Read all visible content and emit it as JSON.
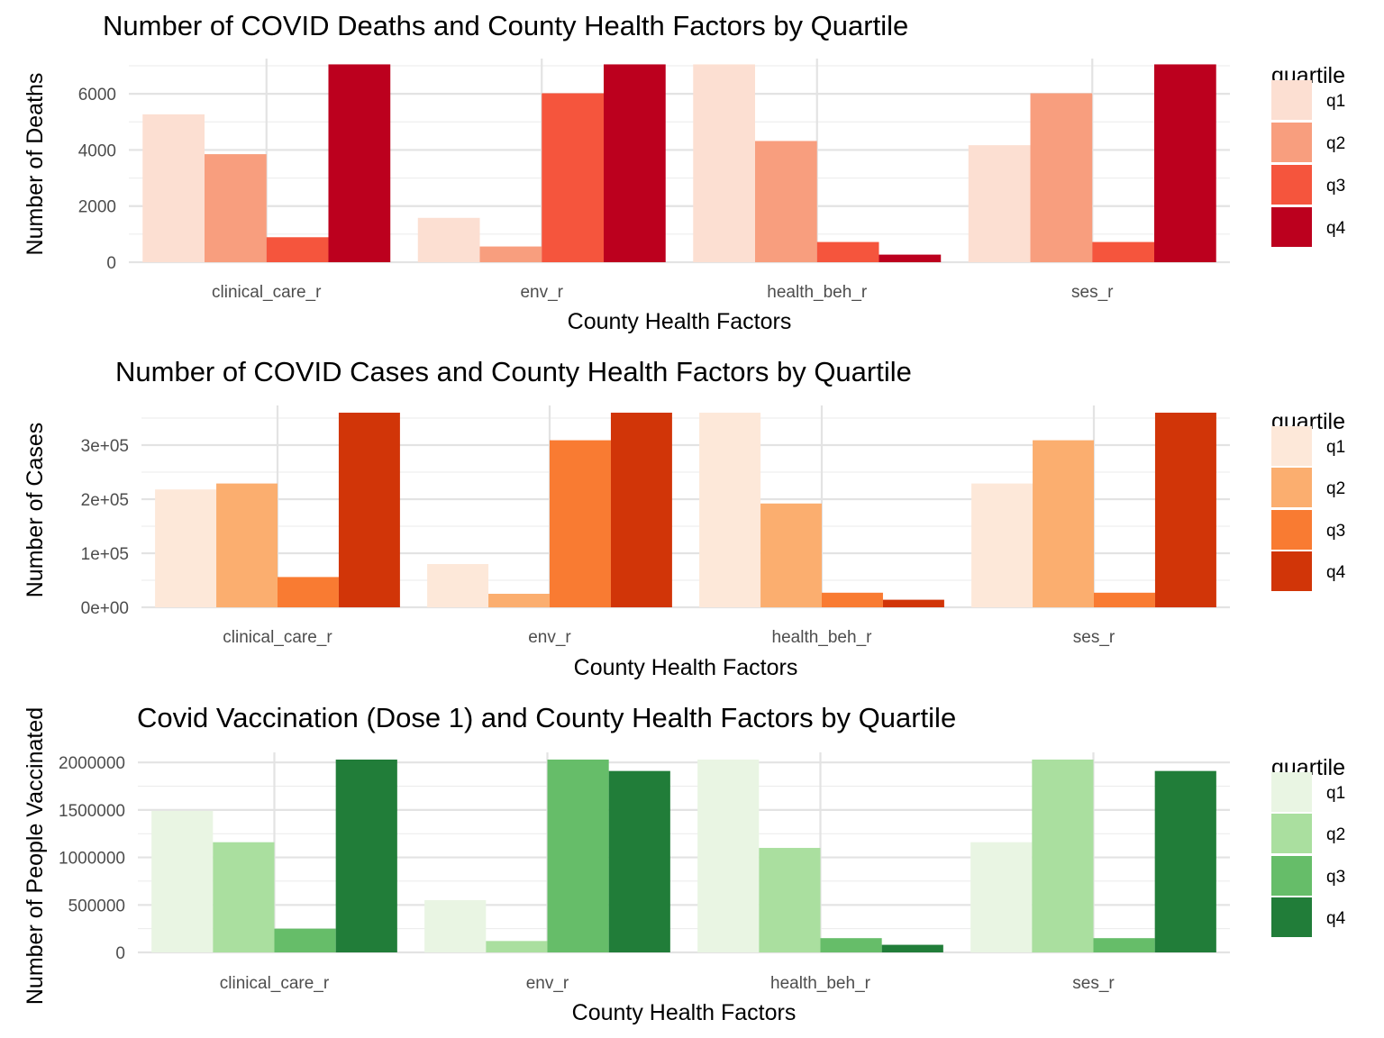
{
  "chart_data": [
    {
      "type": "bar",
      "title": "Number of COVID Deaths and County Health Factors by Quartile",
      "xlabel": "County Health Factors",
      "ylabel": "Number of Deaths",
      "categories": [
        "clinical_care_r",
        "env_r",
        "health_beh_r",
        "ses_r"
      ],
      "ylim": [
        0,
        7000
      ],
      "yticks": [
        0,
        2000,
        4000,
        6000
      ],
      "ytick_labels": [
        "0",
        "2000",
        "4000",
        "6000"
      ],
      "legend_title": "quartile",
      "legend_position": "right",
      "grid": true,
      "series": [
        {
          "name": "q1",
          "color": "#fcdfd2",
          "values": [
            5270,
            1580,
            7050,
            4170
          ]
        },
        {
          "name": "q2",
          "color": "#f89e7e",
          "values": [
            3850,
            560,
            4320,
            6020
          ]
        },
        {
          "name": "q3",
          "color": "#f5553d",
          "values": [
            890,
            6020,
            720,
            720
          ]
        },
        {
          "name": "q4",
          "color": "#bc001e",
          "values": [
            7050,
            7050,
            270,
            7050
          ]
        }
      ]
    },
    {
      "type": "bar",
      "title": "Number of COVID Cases and County Health Factors by Quartile",
      "xlabel": "County Health Factors",
      "ylabel": "Number of Cases",
      "categories": [
        "clinical_care_r",
        "env_r",
        "health_beh_r",
        "ses_r"
      ],
      "ylim": [
        0,
        360000
      ],
      "yticks": [
        0,
        100000,
        200000,
        300000
      ],
      "ytick_labels": [
        "0e+00",
        "1e+05",
        "2e+05",
        "3e+05"
      ],
      "legend_title": "quartile",
      "legend_position": "right",
      "grid": true,
      "series": [
        {
          "name": "q1",
          "color": "#fde8d9",
          "values": [
            218000,
            80000,
            360000,
            229000
          ]
        },
        {
          "name": "q2",
          "color": "#fbae6f",
          "values": [
            229000,
            25000,
            192000,
            309000
          ]
        },
        {
          "name": "q3",
          "color": "#f97b32",
          "values": [
            56000,
            309000,
            27000,
            27000
          ]
        },
        {
          "name": "q4",
          "color": "#d13508",
          "values": [
            360000,
            360000,
            14000,
            360000
          ]
        }
      ]
    },
    {
      "type": "bar",
      "title": "Covid Vaccination (Dose 1) and County Health Factors by Quartile",
      "xlabel": "County Health Factors",
      "ylabel": "Number of People Vaccinated",
      "categories": [
        "clinical_care_r",
        "env_r",
        "health_beh_r",
        "ses_r"
      ],
      "ylim": [
        0,
        2030000
      ],
      "yticks": [
        0,
        500000,
        1000000,
        1500000,
        2000000
      ],
      "ytick_labels": [
        "0",
        "500000",
        "1000000",
        "1500000",
        "2000000"
      ],
      "legend_title": "quartile",
      "legend_position": "right",
      "grid": true,
      "series": [
        {
          "name": "q1",
          "color": "#e9f5e3",
          "values": [
            1490000,
            550000,
            2030000,
            1160000
          ]
        },
        {
          "name": "q2",
          "color": "#aadf9f",
          "values": [
            1160000,
            120000,
            1100000,
            2030000
          ]
        },
        {
          "name": "q3",
          "color": "#66bd69",
          "values": [
            250000,
            2030000,
            150000,
            150000
          ]
        },
        {
          "name": "q4",
          "color": "#217d39",
          "values": [
            2030000,
            1910000,
            80000,
            1910000
          ]
        }
      ]
    }
  ]
}
